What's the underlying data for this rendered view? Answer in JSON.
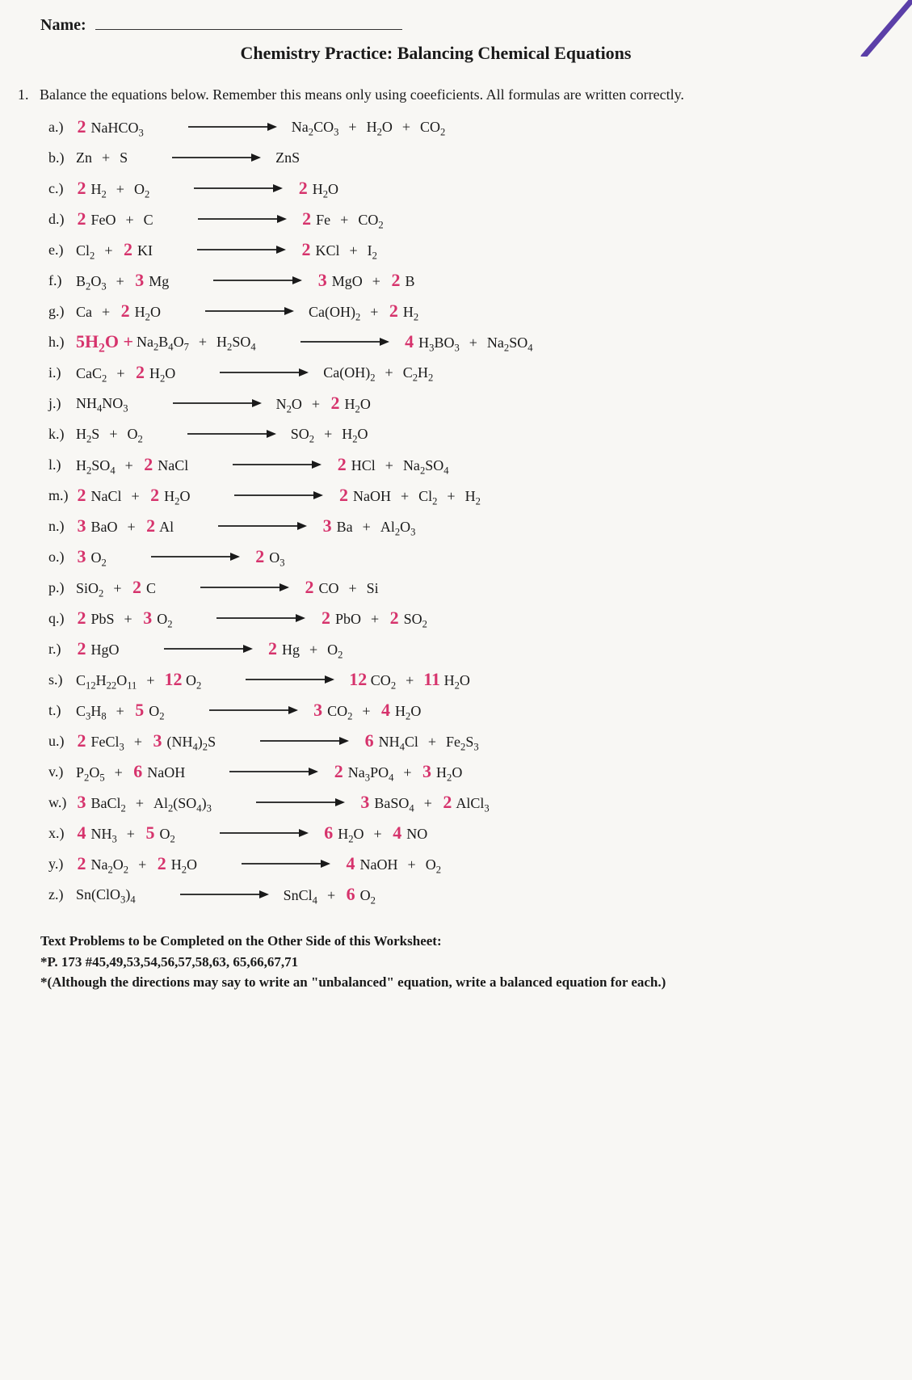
{
  "header": {
    "name_label": "Name:",
    "title": "Chemistry Practice: Balancing Chemical Equations"
  },
  "question": {
    "number": "1.",
    "prompt": "Balance the equations below.  Remember this means only using coeeficients.  All formulas are written correctly."
  },
  "equations": [
    {
      "label": "a.)",
      "lhs": [
        {
          "coef": "2",
          "formula": "NaHCO_3"
        }
      ],
      "rhs": [
        {
          "formula": "Na_2CO_3"
        },
        {
          "formula": "H_2O"
        },
        {
          "formula": "CO_2"
        }
      ]
    },
    {
      "label": "b.)",
      "lhs": [
        {
          "formula": "Zn"
        },
        {
          "formula": "S"
        }
      ],
      "rhs": [
        {
          "formula": "ZnS"
        }
      ]
    },
    {
      "label": "c.)",
      "lhs": [
        {
          "coef": "2",
          "formula": "H_2"
        },
        {
          "formula": "O_2"
        }
      ],
      "rhs": [
        {
          "coef": "2",
          "formula": "H_2O"
        }
      ]
    },
    {
      "label": "d.)",
      "lhs": [
        {
          "coef": "2",
          "formula": "FeO"
        },
        {
          "formula": "C"
        }
      ],
      "rhs": [
        {
          "coef": "2",
          "formula": "Fe"
        },
        {
          "formula": "CO_2"
        }
      ]
    },
    {
      "label": "e.)",
      "lhs": [
        {
          "formula": "Cl_2"
        },
        {
          "coef": "2",
          "formula": "KI"
        }
      ],
      "rhs": [
        {
          "coef": "2",
          "formula": "KCl"
        },
        {
          "formula": "I_2"
        }
      ]
    },
    {
      "label": "f.)",
      "lhs": [
        {
          "formula": "B_2O_3"
        },
        {
          "coef": "3",
          "formula": "Mg"
        }
      ],
      "rhs": [
        {
          "coef": "3",
          "formula": "MgO"
        },
        {
          "coef": "2",
          "formula": "B"
        }
      ]
    },
    {
      "label": "g.)",
      "lhs": [
        {
          "formula": "Ca"
        },
        {
          "coef": "2",
          "formula": "H_2O"
        }
      ],
      "rhs": [
        {
          "formula": "Ca(OH)_2"
        },
        {
          "coef": "2",
          "formula": "H_2"
        }
      ]
    },
    {
      "label": "h.)",
      "extra": "5H_2O +",
      "lhs": [
        {
          "formula": "Na_2B_4O_7"
        },
        {
          "formula": "H_2SO_4"
        }
      ],
      "rhs": [
        {
          "coef": "4",
          "formula": "H_3BO_3"
        },
        {
          "formula": "Na_2SO_4"
        }
      ]
    },
    {
      "label": "i.)",
      "lhs": [
        {
          "formula": "CaC_2"
        },
        {
          "coef": "2",
          "formula": "H_2O"
        }
      ],
      "rhs": [
        {
          "formula": "Ca(OH)_2"
        },
        {
          "formula": "C_2H_2"
        }
      ]
    },
    {
      "label": "j.)",
      "lhs": [
        {
          "formula": "NH_4NO_3"
        }
      ],
      "rhs": [
        {
          "formula": "N_2O"
        },
        {
          "coef": "2",
          "formula": "H_2O"
        }
      ]
    },
    {
      "label": "k.)",
      "lhs": [
        {
          "formula": "H_2S"
        },
        {
          "formula": "O_2"
        }
      ],
      "rhs": [
        {
          "formula": "SO_2"
        },
        {
          "formula": "H_2O"
        }
      ]
    },
    {
      "label": "l.)",
      "lhs": [
        {
          "formula": "H_2SO_4"
        },
        {
          "coef": "2",
          "formula": "NaCl"
        }
      ],
      "rhs": [
        {
          "coef": "2",
          "formula": "HCl"
        },
        {
          "formula": "Na_2SO_4"
        }
      ]
    },
    {
      "label": "m.)",
      "lhs": [
        {
          "coef": "2",
          "formula": "NaCl"
        },
        {
          "coef": "2",
          "formula": "H_2O"
        }
      ],
      "rhs": [
        {
          "coef": "2",
          "formula": "NaOH"
        },
        {
          "formula": "Cl_2"
        },
        {
          "formula": "H_2"
        }
      ]
    },
    {
      "label": "n.)",
      "lhs": [
        {
          "coef": "3",
          "formula": "BaO"
        },
        {
          "coef": "2",
          "formula": "Al"
        }
      ],
      "rhs": [
        {
          "coef": "3",
          "formula": "Ba"
        },
        {
          "formula": "Al_2O_3"
        }
      ]
    },
    {
      "label": "o.)",
      "lhs": [
        {
          "coef": "3",
          "formula": "O_2"
        }
      ],
      "rhs": [
        {
          "coef": "2",
          "formula": "O_3"
        }
      ]
    },
    {
      "label": "p.)",
      "lhs": [
        {
          "formula": "SiO_2"
        },
        {
          "coef": "2",
          "formula": "C"
        }
      ],
      "rhs": [
        {
          "coef": "2",
          "formula": "CO"
        },
        {
          "formula": "Si"
        }
      ]
    },
    {
      "label": "q.)",
      "lhs": [
        {
          "coef": "2",
          "formula": "PbS"
        },
        {
          "coef": "3",
          "formula": "O_2"
        }
      ],
      "rhs": [
        {
          "coef": "2",
          "formula": "PbO"
        },
        {
          "coef": "2",
          "formula": "SO_2"
        }
      ]
    },
    {
      "label": "r.)",
      "lhs": [
        {
          "coef": "2",
          "formula": "HgO"
        }
      ],
      "rhs": [
        {
          "coef": "2",
          "formula": "Hg"
        },
        {
          "formula": "O_2"
        }
      ]
    },
    {
      "label": "s.)",
      "lhs": [
        {
          "formula": "C_12H_22O_11"
        },
        {
          "coef": "12",
          "formula": "O_2"
        }
      ],
      "rhs": [
        {
          "coef": "12",
          "formula": "CO_2"
        },
        {
          "coef": "11",
          "formula": "H_2O"
        }
      ]
    },
    {
      "label": "t.)",
      "lhs": [
        {
          "formula": "C_3H_8"
        },
        {
          "coef": "5",
          "formula": "O_2"
        }
      ],
      "rhs": [
        {
          "coef": "3",
          "formula": "CO_2"
        },
        {
          "coef": "4",
          "formula": "H_2O"
        }
      ]
    },
    {
      "label": "u.)",
      "lhs": [
        {
          "coef": "2",
          "formula": "FeCl_3"
        },
        {
          "coef": "3",
          "formula": "(NH_4)_2S"
        }
      ],
      "rhs": [
        {
          "coef": "6",
          "formula": "NH_4Cl"
        },
        {
          "formula": "Fe_2S_3"
        }
      ]
    },
    {
      "label": "v.)",
      "lhs": [
        {
          "formula": "P_2O_5"
        },
        {
          "coef": "6",
          "formula": "NaOH"
        }
      ],
      "rhs": [
        {
          "coef": "2",
          "formula": "Na_3PO_4"
        },
        {
          "coef": "3",
          "formula": "H_2O"
        }
      ]
    },
    {
      "label": "w.)",
      "lhs": [
        {
          "coef": "3",
          "formula": "BaCl_2"
        },
        {
          "formula": "Al_2(SO_4)_3"
        }
      ],
      "rhs": [
        {
          "coef": "3",
          "formula": "BaSO_4"
        },
        {
          "coef": "2",
          "formula": "AlCl_3"
        }
      ]
    },
    {
      "label": "x.)",
      "lhs": [
        {
          "coef": "4",
          "formula": "NH_3"
        },
        {
          "coef": "5",
          "formula": "O_2"
        }
      ],
      "rhs": [
        {
          "coef": "6",
          "formula": "H_2O"
        },
        {
          "coef": "4",
          "formula": "NO"
        }
      ]
    },
    {
      "label": "y.)",
      "lhs": [
        {
          "coef": "2",
          "formula": "Na_2O_2"
        },
        {
          "coef": "2",
          "formula": "H_2O"
        }
      ],
      "rhs": [
        {
          "coef": "4",
          "formula": "NaOH"
        },
        {
          "formula": "O_2"
        }
      ]
    },
    {
      "label": "z.)",
      "lhs": [
        {
          "formula": "Sn(ClO_3)_4"
        }
      ],
      "rhs": [
        {
          "formula": "SnCl_4"
        },
        {
          "coef": "6",
          "formula": "O_2"
        }
      ]
    }
  ],
  "footer": {
    "line1": "Text Problems to be Completed on the Other Side of this Worksheet:",
    "line2": "*P. 173 #45,49,53,54,56,57,58,63, 65,66,67,71",
    "line3": "*(Although the directions may say to write an \"unbalanced\" equation, write a balanced equation for each.)"
  },
  "style": {
    "hw_color": "#d6336c",
    "text_color": "#1a1a1a",
    "bg_color": "#f8f7f4",
    "arrow_length": 110,
    "gap_after_lhs": 28,
    "gap_before_rhs": 18,
    "term_gap": "      "
  }
}
